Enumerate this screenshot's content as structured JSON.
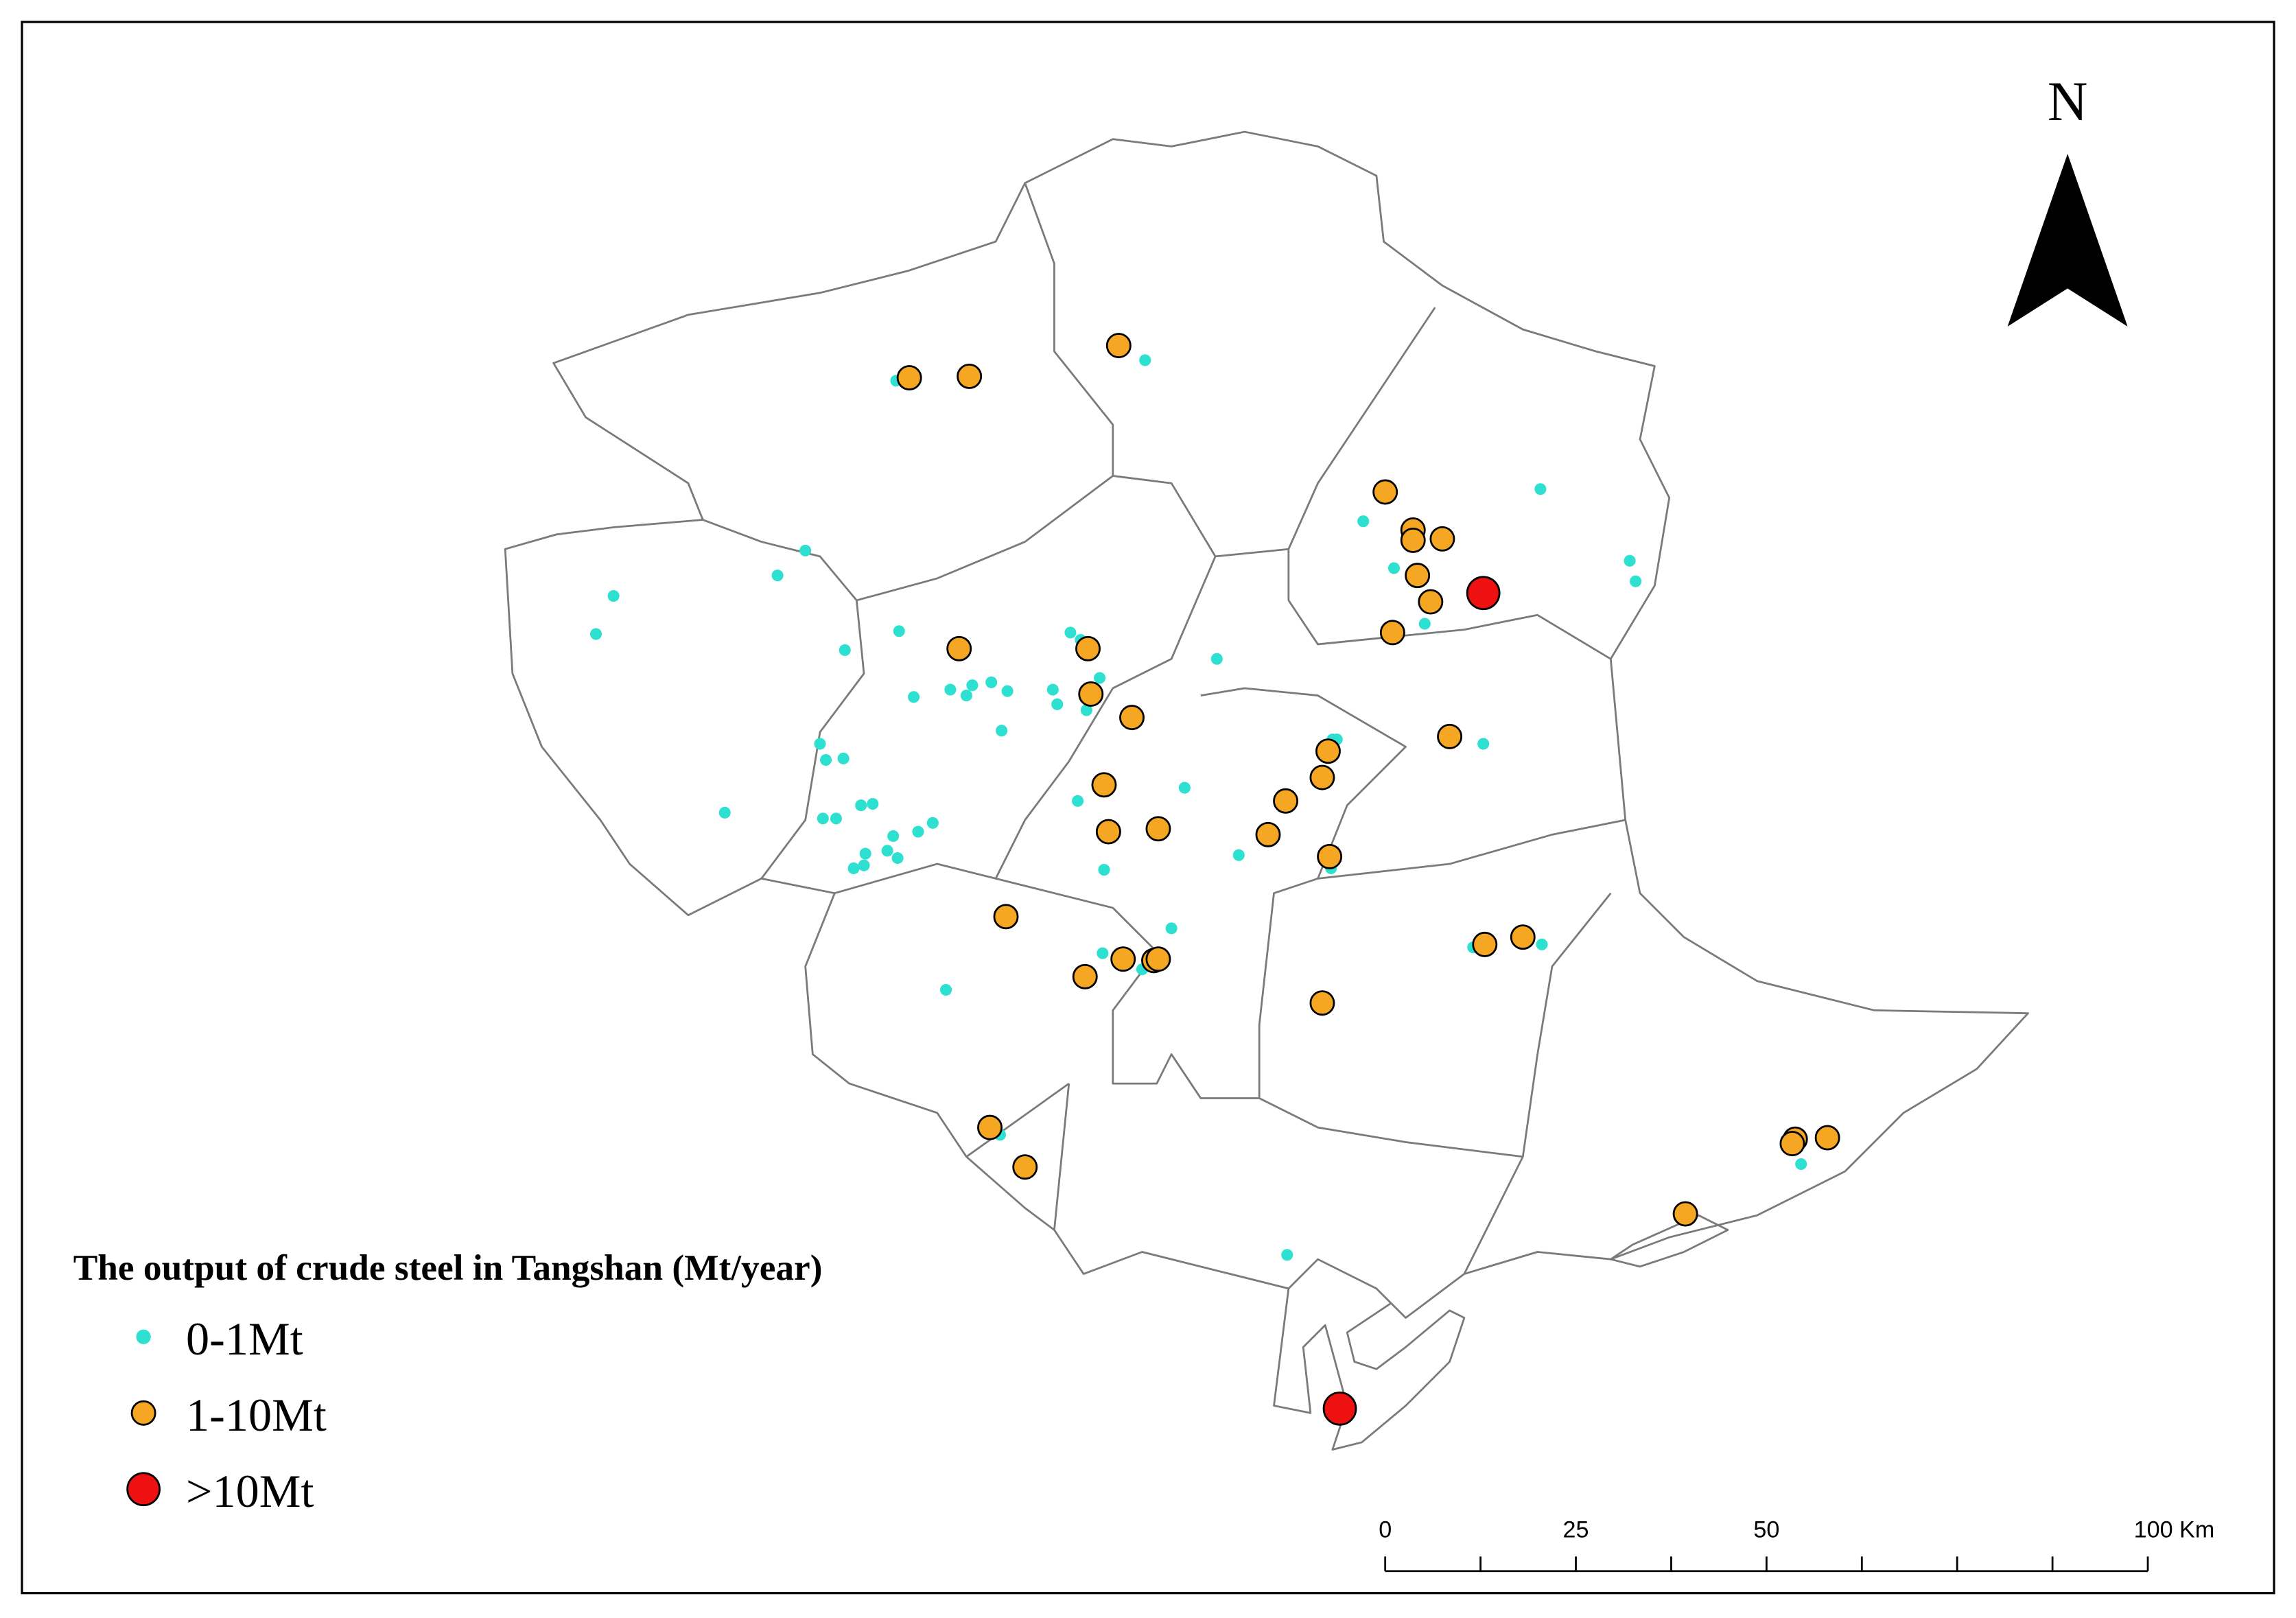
{
  "legend": {
    "title": "The output of crude steel in Tangshan (Mt/year)",
    "items": [
      {
        "label": "0-1Mt",
        "color": "#2ee0d0"
      },
      {
        "label": "1-10Mt",
        "color": "#f5a623"
      },
      {
        "label": ">10Mt",
        "color": "#ee1111"
      }
    ]
  },
  "north_arrow": {
    "label": "N"
  },
  "scale_bar": {
    "labels": [
      "0",
      "25",
      "50",
      "100 Km"
    ]
  }
}
